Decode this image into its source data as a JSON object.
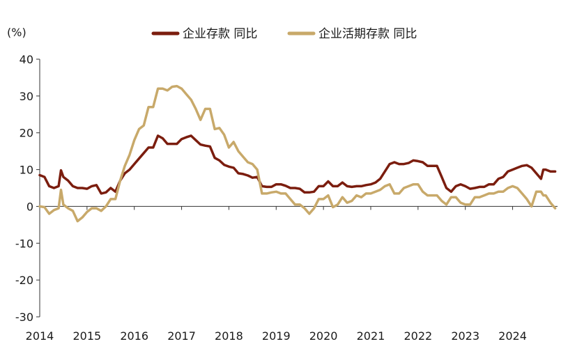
{
  "chart_data": {
    "type": "line",
    "ylabel": "(%)",
    "ylim": [
      -30,
      40
    ],
    "yticks": [
      40,
      30,
      20,
      10,
      0,
      -10,
      -20,
      -30
    ],
    "xlim": [
      2014.0,
      2024.95
    ],
    "xticks": [
      "2014",
      "2015",
      "2016",
      "2017",
      "2018",
      "2019",
      "2020",
      "2021",
      "2022",
      "2023",
      "2024"
    ],
    "grid": false,
    "legend_position": "top-center",
    "series": [
      {
        "name": "企业存款 同比",
        "color": "#7b1d0e",
        "values": [
          [
            2014.0,
            8.5
          ],
          [
            2014.1,
            8.0
          ],
          [
            2014.2,
            5.5
          ],
          [
            2014.3,
            5.0
          ],
          [
            2014.4,
            5.5
          ],
          [
            2014.45,
            9.8
          ],
          [
            2014.5,
            8.0
          ],
          [
            2014.6,
            7.0
          ],
          [
            2014.7,
            5.5
          ],
          [
            2014.8,
            5.0
          ],
          [
            2014.9,
            5.0
          ],
          [
            2015.0,
            4.8
          ],
          [
            2015.1,
            5.5
          ],
          [
            2015.2,
            5.8
          ],
          [
            2015.3,
            3.5
          ],
          [
            2015.4,
            3.8
          ],
          [
            2015.5,
            5.0
          ],
          [
            2015.6,
            4.0
          ],
          [
            2015.7,
            7.0
          ],
          [
            2015.8,
            9.0
          ],
          [
            2015.9,
            10.0
          ],
          [
            2016.0,
            11.5
          ],
          [
            2016.1,
            13.0
          ],
          [
            2016.2,
            14.5
          ],
          [
            2016.3,
            16.0
          ],
          [
            2016.4,
            16.0
          ],
          [
            2016.5,
            19.2
          ],
          [
            2016.6,
            18.5
          ],
          [
            2016.7,
            17.0
          ],
          [
            2016.8,
            17.0
          ],
          [
            2016.9,
            17.0
          ],
          [
            2017.0,
            18.3
          ],
          [
            2017.1,
            18.8
          ],
          [
            2017.2,
            19.2
          ],
          [
            2017.3,
            18.0
          ],
          [
            2017.4,
            16.8
          ],
          [
            2017.5,
            16.5
          ],
          [
            2017.6,
            16.3
          ],
          [
            2017.7,
            13.2
          ],
          [
            2017.8,
            12.5
          ],
          [
            2017.9,
            11.3
          ],
          [
            2018.0,
            10.8
          ],
          [
            2018.1,
            10.5
          ],
          [
            2018.2,
            9.0
          ],
          [
            2018.3,
            8.8
          ],
          [
            2018.4,
            8.4
          ],
          [
            2018.5,
            7.8
          ],
          [
            2018.6,
            8.0
          ],
          [
            2018.7,
            5.5
          ],
          [
            2018.8,
            5.3
          ],
          [
            2018.9,
            5.3
          ],
          [
            2019.0,
            6.0
          ],
          [
            2019.1,
            6.0
          ],
          [
            2019.2,
            5.6
          ],
          [
            2019.3,
            5.0
          ],
          [
            2019.4,
            5.0
          ],
          [
            2019.5,
            4.8
          ],
          [
            2019.6,
            3.8
          ],
          [
            2019.7,
            3.8
          ],
          [
            2019.8,
            4.0
          ],
          [
            2019.9,
            5.5
          ],
          [
            2020.0,
            5.5
          ],
          [
            2020.1,
            6.8
          ],
          [
            2020.2,
            5.5
          ],
          [
            2020.3,
            5.5
          ],
          [
            2020.4,
            6.5
          ],
          [
            2020.5,
            5.5
          ],
          [
            2020.6,
            5.3
          ],
          [
            2020.7,
            5.5
          ],
          [
            2020.8,
            5.5
          ],
          [
            2020.9,
            5.8
          ],
          [
            2021.0,
            6.0
          ],
          [
            2021.1,
            6.5
          ],
          [
            2021.2,
            7.5
          ],
          [
            2021.3,
            9.5
          ],
          [
            2021.4,
            11.5
          ],
          [
            2021.5,
            12.0
          ],
          [
            2021.6,
            11.5
          ],
          [
            2021.7,
            11.5
          ],
          [
            2021.8,
            11.8
          ],
          [
            2021.9,
            12.5
          ],
          [
            2022.0,
            12.3
          ],
          [
            2022.1,
            12.0
          ],
          [
            2022.2,
            11.0
          ],
          [
            2022.3,
            11.0
          ],
          [
            2022.4,
            11.0
          ],
          [
            2022.5,
            8.0
          ],
          [
            2022.6,
            5.0
          ],
          [
            2022.7,
            4.0
          ],
          [
            2022.8,
            5.5
          ],
          [
            2022.9,
            6.0
          ],
          [
            2023.0,
            5.5
          ],
          [
            2023.1,
            4.8
          ],
          [
            2023.2,
            5.0
          ],
          [
            2023.3,
            5.3
          ],
          [
            2023.4,
            5.3
          ],
          [
            2023.5,
            6.0
          ],
          [
            2023.6,
            6.0
          ],
          [
            2023.7,
            7.5
          ],
          [
            2023.8,
            8.0
          ],
          [
            2023.9,
            9.5
          ],
          [
            2024.0,
            10.0
          ],
          [
            2024.1,
            10.5
          ],
          [
            2024.2,
            11.0
          ],
          [
            2024.3,
            11.2
          ],
          [
            2024.4,
            10.5
          ],
          [
            2024.5,
            9.0
          ],
          [
            2024.6,
            7.5
          ],
          [
            2024.65,
            10.0
          ],
          [
            2024.7,
            10.0
          ],
          [
            2024.8,
            9.5
          ],
          [
            2024.9,
            9.5
          ]
        ]
      },
      {
        "name": "企业活期存款 同比",
        "color": "#c8a96a",
        "values": [
          [
            2014.0,
            0.0
          ],
          [
            2014.1,
            -0.2
          ],
          [
            2014.2,
            -2.0
          ],
          [
            2014.3,
            -1.0
          ],
          [
            2014.4,
            -0.5
          ],
          [
            2014.45,
            4.5
          ],
          [
            2014.5,
            0.5
          ],
          [
            2014.6,
            -0.5
          ],
          [
            2014.7,
            -1.2
          ],
          [
            2014.8,
            -4.0
          ],
          [
            2014.9,
            -3.0
          ],
          [
            2015.0,
            -1.5
          ],
          [
            2015.1,
            -0.5
          ],
          [
            2015.2,
            -0.5
          ],
          [
            2015.3,
            -1.2
          ],
          [
            2015.4,
            0.0
          ],
          [
            2015.5,
            2.0
          ],
          [
            2015.6,
            2.0
          ],
          [
            2015.7,
            7.0
          ],
          [
            2015.8,
            11.0
          ],
          [
            2015.9,
            14.0
          ],
          [
            2016.0,
            18.0
          ],
          [
            2016.1,
            21.0
          ],
          [
            2016.2,
            22.0
          ],
          [
            2016.3,
            27.0
          ],
          [
            2016.4,
            27.0
          ],
          [
            2016.5,
            32.0
          ],
          [
            2016.6,
            32.0
          ],
          [
            2016.7,
            31.5
          ],
          [
            2016.8,
            32.5
          ],
          [
            2016.9,
            32.7
          ],
          [
            2017.0,
            32.0
          ],
          [
            2017.1,
            30.5
          ],
          [
            2017.2,
            29.0
          ],
          [
            2017.3,
            26.5
          ],
          [
            2017.4,
            23.5
          ],
          [
            2017.5,
            26.5
          ],
          [
            2017.6,
            26.5
          ],
          [
            2017.7,
            21.0
          ],
          [
            2017.8,
            21.3
          ],
          [
            2017.9,
            19.5
          ],
          [
            2018.0,
            16.0
          ],
          [
            2018.1,
            17.5
          ],
          [
            2018.2,
            15.0
          ],
          [
            2018.3,
            13.5
          ],
          [
            2018.4,
            12.0
          ],
          [
            2018.5,
            11.5
          ],
          [
            2018.6,
            10.0
          ],
          [
            2018.7,
            3.5
          ],
          [
            2018.8,
            3.5
          ],
          [
            2018.9,
            3.8
          ],
          [
            2019.0,
            4.0
          ],
          [
            2019.1,
            3.5
          ],
          [
            2019.2,
            3.5
          ],
          [
            2019.3,
            2.0
          ],
          [
            2019.4,
            0.5
          ],
          [
            2019.5,
            0.5
          ],
          [
            2019.6,
            -0.5
          ],
          [
            2019.7,
            -2.0
          ],
          [
            2019.8,
            -0.5
          ],
          [
            2019.9,
            2.0
          ],
          [
            2020.0,
            2.0
          ],
          [
            2020.1,
            3.0
          ],
          [
            2020.2,
            -0.2
          ],
          [
            2020.3,
            0.5
          ],
          [
            2020.4,
            2.5
          ],
          [
            2020.5,
            1.0
          ],
          [
            2020.6,
            1.5
          ],
          [
            2020.7,
            3.0
          ],
          [
            2020.8,
            2.5
          ],
          [
            2020.9,
            3.5
          ],
          [
            2021.0,
            3.5
          ],
          [
            2021.1,
            4.0
          ],
          [
            2021.2,
            4.5
          ],
          [
            2021.3,
            5.5
          ],
          [
            2021.4,
            6.0
          ],
          [
            2021.5,
            3.5
          ],
          [
            2021.6,
            3.5
          ],
          [
            2021.7,
            5.0
          ],
          [
            2021.8,
            5.5
          ],
          [
            2021.9,
            6.0
          ],
          [
            2022.0,
            6.0
          ],
          [
            2022.1,
            4.0
          ],
          [
            2022.2,
            3.0
          ],
          [
            2022.3,
            3.0
          ],
          [
            2022.4,
            3.0
          ],
          [
            2022.5,
            1.5
          ],
          [
            2022.6,
            0.5
          ],
          [
            2022.7,
            2.5
          ],
          [
            2022.8,
            2.5
          ],
          [
            2022.9,
            1.0
          ],
          [
            2023.0,
            0.5
          ],
          [
            2023.1,
            0.5
          ],
          [
            2023.2,
            2.5
          ],
          [
            2023.3,
            2.5
          ],
          [
            2023.4,
            3.0
          ],
          [
            2023.5,
            3.5
          ],
          [
            2023.6,
            3.5
          ],
          [
            2023.7,
            4.0
          ],
          [
            2023.8,
            4.0
          ],
          [
            2023.9,
            5.0
          ],
          [
            2024.0,
            5.5
          ],
          [
            2024.1,
            5.0
          ],
          [
            2024.2,
            3.5
          ],
          [
            2024.3,
            2.0
          ],
          [
            2024.4,
            0.0
          ],
          [
            2024.5,
            4.0
          ],
          [
            2024.6,
            4.0
          ],
          [
            2024.65,
            3.0
          ],
          [
            2024.7,
            3.0
          ],
          [
            2024.8,
            1.0
          ],
          [
            2024.9,
            -0.5
          ]
        ]
      }
    ]
  }
}
